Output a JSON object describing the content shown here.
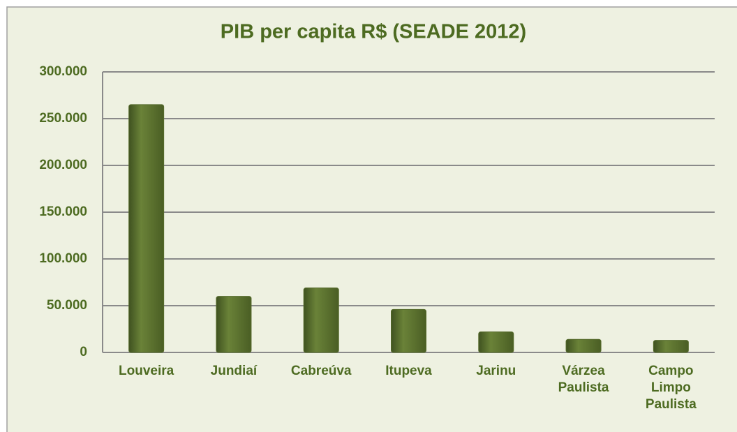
{
  "chart_data": {
    "type": "bar",
    "title": "PIB per capita R$ (SEADE 2012)",
    "categories": [
      "Louveira",
      "Jundiaí",
      "Cabreúva",
      "Itupeva",
      "Jarinu",
      "Várzea Paulista",
      "Campo Limpo Paulista"
    ],
    "values": [
      265000,
      60000,
      69000,
      46000,
      22000,
      14000,
      13000
    ],
    "color": "#566b2c",
    "ylim": [
      0,
      300000
    ],
    "yticks": [
      0,
      {
        "value": 50000,
        "label": "50.000"
      },
      {
        "value": 100000,
        "label": "100.000"
      },
      {
        "value": 150000,
        "label": "150.000"
      },
      {
        "value": 200000,
        "label": "200.000"
      },
      {
        "value": 250000,
        "label": "250.000"
      },
      {
        "value": 300000,
        "label": "300.000"
      }
    ],
    "grid": true
  }
}
